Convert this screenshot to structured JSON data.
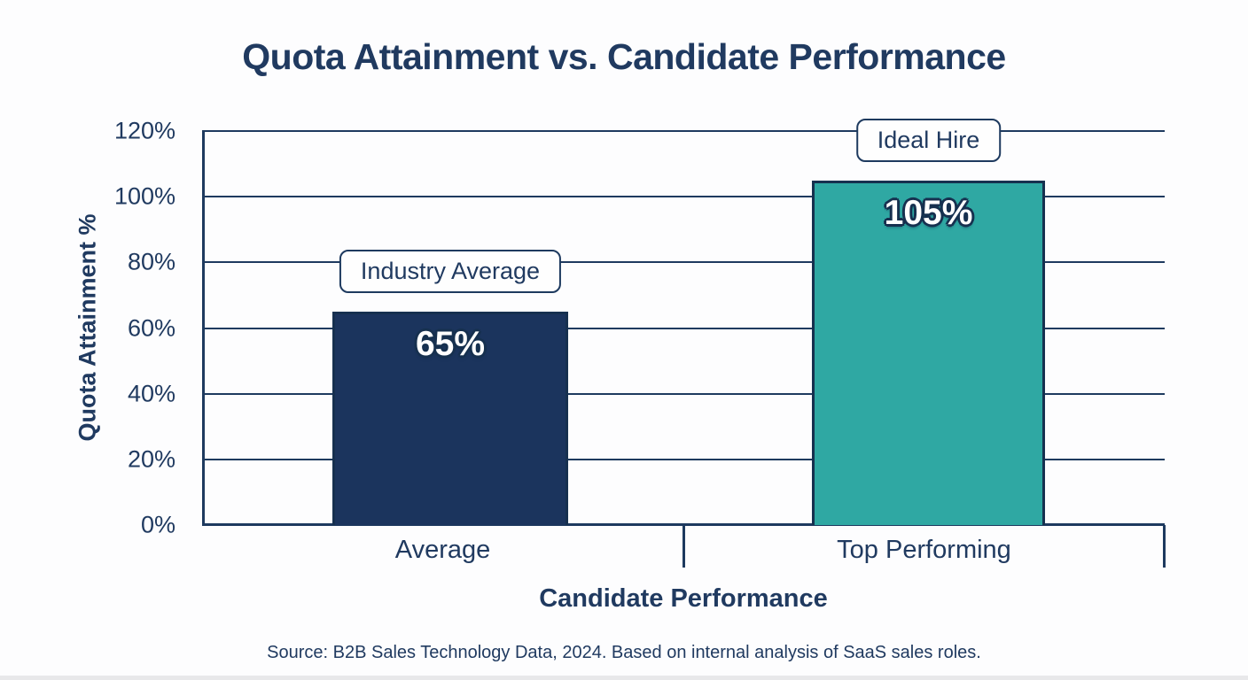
{
  "chart_data": {
    "type": "bar",
    "title": "Quota Attainment vs. Candidate Performance",
    "xlabel": "Candidate Performance",
    "ylabel": "Quota Attainment %",
    "ylim": [
      0,
      120
    ],
    "yticks": [
      "0%",
      "20%",
      "40%",
      "60%",
      "80%",
      "100%",
      "120%"
    ],
    "grid": "horizontal",
    "legend": "none",
    "categories": [
      "Average",
      "Top Performing"
    ],
    "values": [
      65,
      105
    ],
    "bars": [
      {
        "category": "Average",
        "value": 65,
        "value_label": "65%",
        "callout": "Industry Average",
        "color": "#1b345d"
      },
      {
        "category": "Top Performing",
        "value": 105,
        "value_label": "105%",
        "callout": "Ideal Hire",
        "color": "#2fa8a3"
      }
    ],
    "source": "Source: B2B Sales Technology Data, 2024. Based on internal analysis of SaaS sales roles.",
    "colors": {
      "bar_average": "#1b345d",
      "bar_top_performing": "#2fa8a3",
      "axis_and_text": "#203a60",
      "gridline": "#1e3a5f",
      "bar_border": "#16304f",
      "background": "#fdfdfe"
    }
  }
}
